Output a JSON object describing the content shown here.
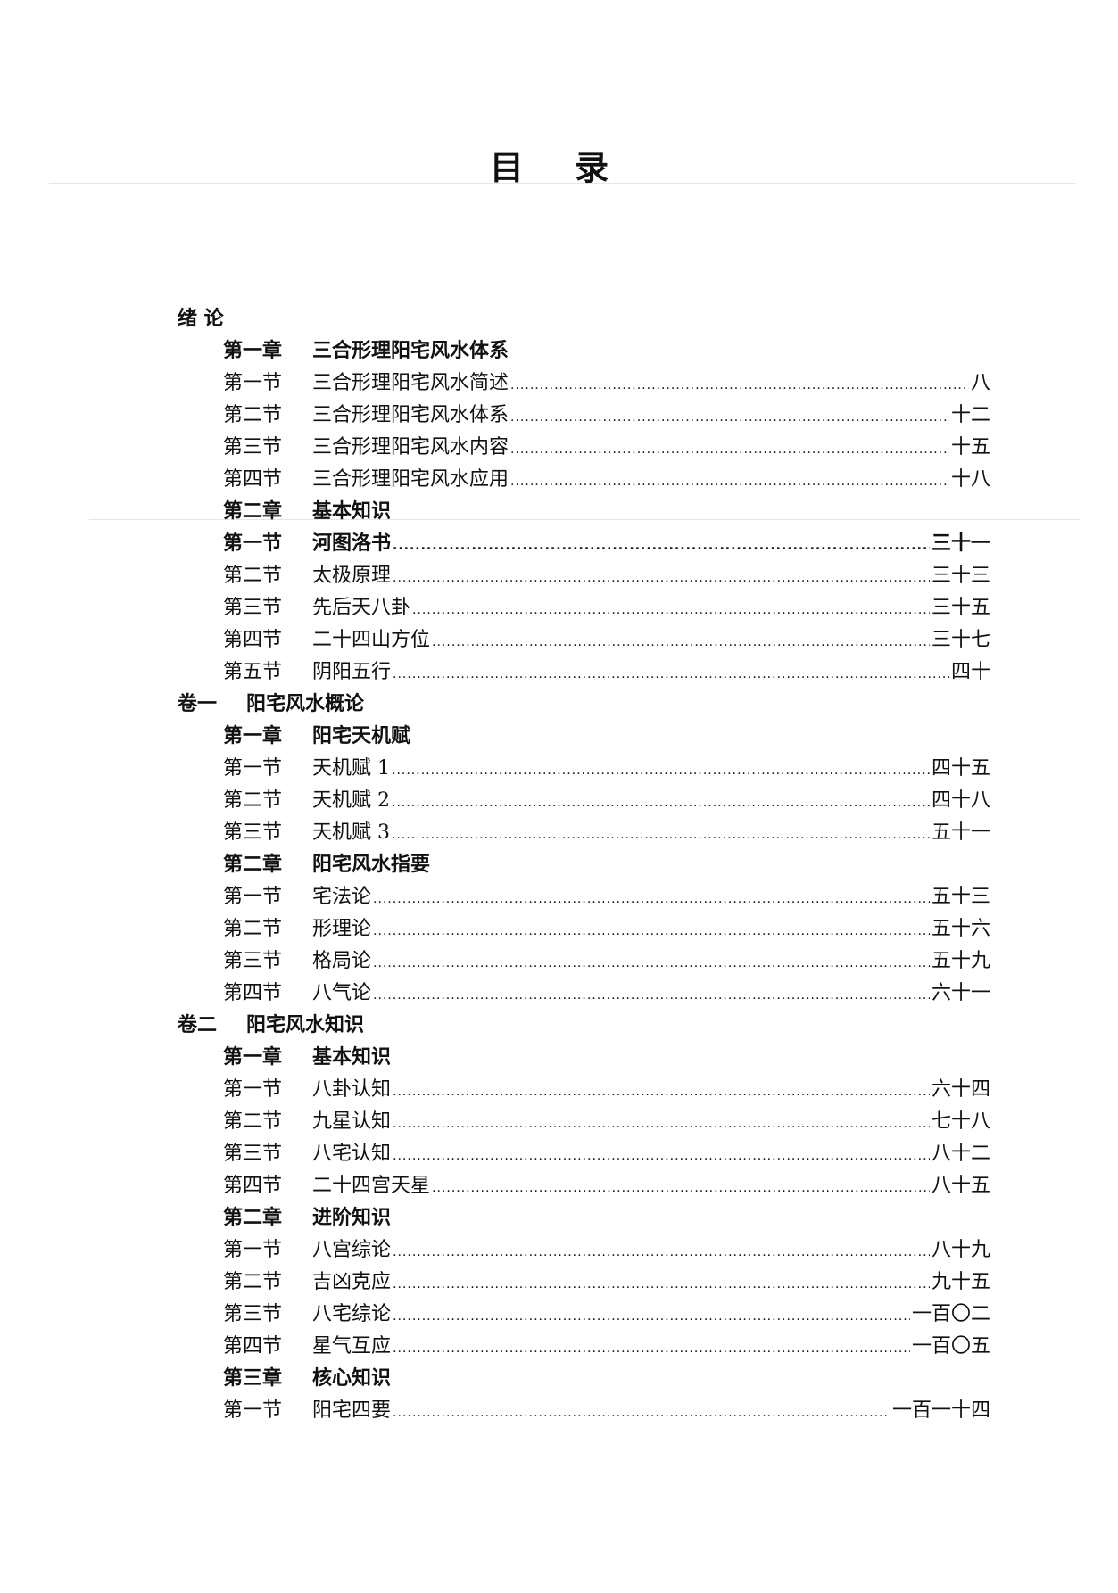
{
  "title": "目 录",
  "entries": [
    {
      "level": "part",
      "label": "绪 论",
      "title": ""
    },
    {
      "level": "chapter",
      "label": "第一章",
      "title": "三合形理阳宅风水体系"
    },
    {
      "level": "section",
      "label": "第一节",
      "title": "三合形理阳宅风水简述",
      "page": "八"
    },
    {
      "level": "section",
      "label": "第二节",
      "title": "三合形理阳宅风水体系",
      "page": "十二"
    },
    {
      "level": "section",
      "label": "第三节",
      "title": "三合形理阳宅风水内容",
      "page": "十五"
    },
    {
      "level": "section",
      "label": "第四节",
      "title": "三合形理阳宅风水应用",
      "page": "十八"
    },
    {
      "level": "chapter",
      "label": "第二章",
      "title": "基本知识"
    },
    {
      "level": "section",
      "label": "第一节",
      "title": "河图洛书",
      "page": "三十一",
      "bold": true
    },
    {
      "level": "section",
      "label": "第二节",
      "title": "太极原理",
      "page": "三十三"
    },
    {
      "level": "section",
      "label": "第三节",
      "title": "先后天八卦",
      "page": "三十五"
    },
    {
      "level": "section",
      "label": "第四节",
      "title": "二十四山方位",
      "page": "三十七"
    },
    {
      "level": "section",
      "label": "第五节",
      "title": "阴阳五行",
      "page": "四十"
    },
    {
      "level": "part",
      "label": "卷一",
      "title": "阳宅风水概论"
    },
    {
      "level": "chapter",
      "label": "第一章",
      "title": "阳宅天机赋"
    },
    {
      "level": "section",
      "label": "第一节",
      "title": "天机赋 1",
      "page": "四十五"
    },
    {
      "level": "section",
      "label": "第二节",
      "title": "天机赋 2",
      "page": "四十八"
    },
    {
      "level": "section",
      "label": "第三节",
      "title": "天机赋 3",
      "page": "五十一"
    },
    {
      "level": "chapter",
      "label": "第二章",
      "title": "阳宅风水指要"
    },
    {
      "level": "section",
      "label": "第一节",
      "title": "宅法论",
      "page": "五十三"
    },
    {
      "level": "section",
      "label": "第二节",
      "title": "形理论",
      "page": "五十六"
    },
    {
      "level": "section",
      "label": "第三节",
      "title": "格局论",
      "page": "五十九"
    },
    {
      "level": "section",
      "label": "第四节",
      "title": "八气论",
      "page": "六十一"
    },
    {
      "level": "part",
      "label": "卷二",
      "title": "阳宅风水知识"
    },
    {
      "level": "chapter",
      "label": "第一章",
      "title": "基本知识"
    },
    {
      "level": "section",
      "label": "第一节",
      "title": "八卦认知",
      "page": "六十四"
    },
    {
      "level": "section",
      "label": "第二节",
      "title": "九星认知",
      "page": "七十八"
    },
    {
      "level": "section",
      "label": "第三节",
      "title": "八宅认知",
      "page": "八十二"
    },
    {
      "level": "section",
      "label": "第四节",
      "title": "二十四宫天星",
      "page": "八十五"
    },
    {
      "level": "chapter",
      "label": "第二章",
      "title": "进阶知识"
    },
    {
      "level": "section",
      "label": "第一节",
      "title": "八宫综论",
      "page": "八十九"
    },
    {
      "level": "section",
      "label": "第二节",
      "title": "吉凶克应",
      "page": "九十五"
    },
    {
      "level": "section",
      "label": "第三节",
      "title": "八宅综论",
      "page": "一百〇二"
    },
    {
      "level": "section",
      "label": "第四节",
      "title": "星气互应",
      "page": "一百〇五"
    },
    {
      "level": "chapter",
      "label": "第三章",
      "title": "核心知识"
    },
    {
      "level": "section",
      "label": "第一节",
      "title": "阳宅四要",
      "page": "一百一十四"
    }
  ]
}
